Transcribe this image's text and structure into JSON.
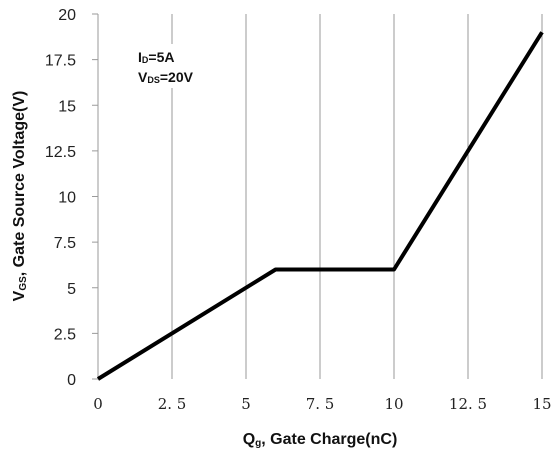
{
  "chart_data": {
    "type": "line",
    "x": [
      0,
      6,
      10,
      15
    ],
    "series": [
      {
        "values": [
          0,
          6,
          6,
          19
        ]
      }
    ],
    "xlim": [
      0,
      15
    ],
    "ylim": [
      0,
      20
    ],
    "x_ticks": [
      "0",
      "2.5",
      "5",
      "7.5",
      "10",
      "12.5",
      "15"
    ],
    "y_ticks": [
      "0",
      "2.5",
      "5",
      "7.5",
      "10",
      "12.5",
      "15",
      "17.5",
      "20"
    ],
    "xlabel": {
      "main": "Q",
      "sub": "g",
      "rest": ", Gate Charge(nC)"
    },
    "ylabel": {
      "main": "V",
      "sub": "GS",
      "rest": ", Gate Source Voltage(V)"
    },
    "annotations": [
      {
        "main": "I",
        "sub": "D",
        "rest": "=5A"
      },
      {
        "main": "V",
        "sub": "DS",
        "rest": "=20V"
      }
    ],
    "grid": "vertical-only",
    "legend": "none",
    "line_color": "#000000",
    "grid_color": "#9a9a9a"
  }
}
